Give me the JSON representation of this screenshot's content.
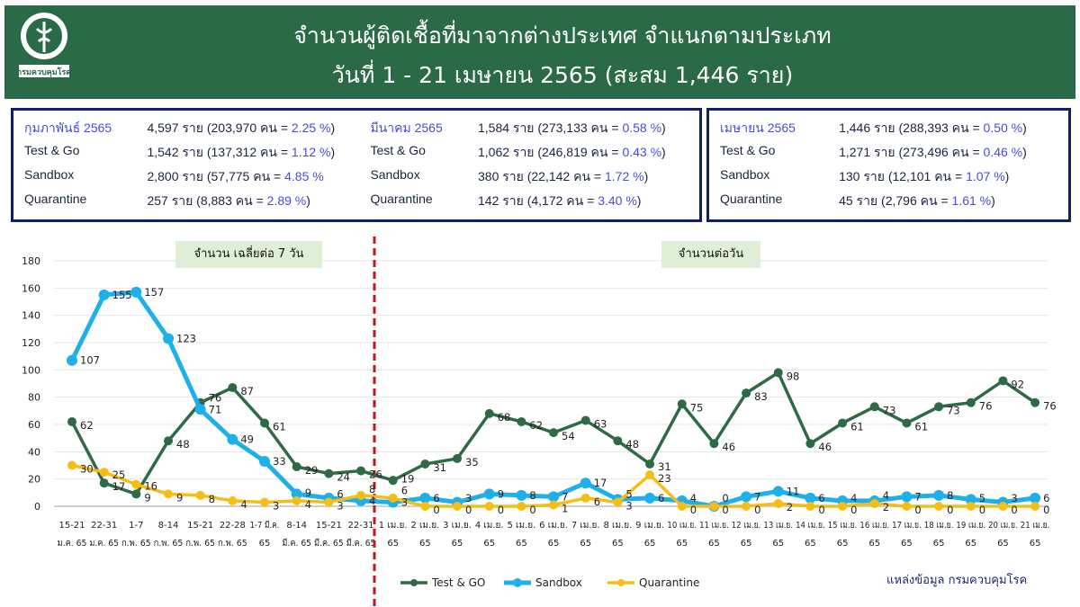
{
  "header": {
    "title": "จำนวนผู้ติดเชื้อที่มาจากต่างประเทศ จำแนกตามประเภท",
    "subtitle": "วันที่  1 - 21 เมษายน  2565 (สะสม 1,446 ราย)",
    "logo_text": "กรมควบคุมโรค"
  },
  "boxes": [
    {
      "rows": [
        {
          "label": "กุมภาพันธ์ 2565",
          "text": "4,597 ราย (203,970 คน = ",
          "pct": "2.25 %",
          "tail": ")"
        },
        {
          "label": "Test & Go",
          "text": "1,542 ราย (137,312 คน  = ",
          "pct": "1.12 %",
          "tail": ")"
        },
        {
          "label": "Sandbox",
          "text": "2,800 ราย (57,775 คน  = ",
          "pct": "4.85 %",
          "tail": ""
        },
        {
          "label": "Quarantine",
          "text": "257 ราย (8,883 คน    = ",
          "pct": "2.89 %",
          "tail": ")"
        }
      ]
    },
    {
      "rows": [
        {
          "label": "มีนาคม 2565",
          "text": "1,584 ราย (273,133 คน = ",
          "pct": "0.58 %",
          "tail": ")"
        },
        {
          "label": "Test & Go",
          "text": "1,062 ราย (246,819 คน = ",
          "pct": "0.43 %",
          "tail": ")"
        },
        {
          "label": "Sandbox",
          "text": "380 ราย (22,142 คน = ",
          "pct": "1.72 %",
          "tail": ")"
        },
        {
          "label": "Quarantine",
          "text": "142 ราย (4,172 คน  = ",
          "pct": "3.40 %",
          "tail": ")"
        }
      ]
    },
    {
      "rows": [
        {
          "label": "เมษายน 2565",
          "text": "1,446 ราย (288,393 คน  = ",
          "pct": "0.50 %",
          "tail": ")"
        },
        {
          "label": "Test & Go",
          "text": "1,271 ราย (273,496 คน = ",
          "pct": "0.46 %",
          "tail": ")"
        },
        {
          "label": "Sandbox",
          "text": "130 ราย (12,101 คน  = ",
          "pct": "1.07 %",
          "tail": ")"
        },
        {
          "label": "Quarantine",
          "text": "45 ราย (2,796 คน  = ",
          "pct": "1.61 %",
          "tail": ")"
        }
      ]
    }
  ],
  "chart_data": {
    "type": "line",
    "ylim": [
      0,
      180
    ],
    "yticks": [
      0,
      20,
      40,
      60,
      80,
      100,
      120,
      140,
      160,
      180
    ],
    "grid": true,
    "legend_placement": "bottom",
    "annotations": {
      "weekly": "จำนวน เฉลี่ยต่อ 7 วัน",
      "daily": "จำนวนต่อวัน"
    },
    "categories": [
      [
        "15-21",
        "ม.ค. 65"
      ],
      [
        "22-31",
        "ม.ค. 65"
      ],
      [
        "1-7",
        "ก.พ. 65"
      ],
      [
        "8-14",
        "ก.พ. 65"
      ],
      [
        "15-21",
        "ก.พ. 65"
      ],
      [
        "22-28",
        "ก.พ. 65"
      ],
      [
        "1-7 มี.ค.",
        "65"
      ],
      [
        "8-14",
        "มี.ค. 65"
      ],
      [
        "15-21",
        "มี.ค. 65"
      ],
      [
        "22-31",
        "มี.ค. 65"
      ],
      [
        "1 เม.ย.",
        "65"
      ],
      [
        "2 เม.ย.",
        "65"
      ],
      [
        "3 เม.ย.",
        "65"
      ],
      [
        "4 เม.ย.",
        "65"
      ],
      [
        "5 เม.ย.",
        "65"
      ],
      [
        "6 เม.ย.",
        "65"
      ],
      [
        "7 เม.ย.",
        "65"
      ],
      [
        "8 เม.ย.",
        "65"
      ],
      [
        "9 เม.ย.",
        "65"
      ],
      [
        "10 เม.ย.",
        "65"
      ],
      [
        "11 เม.ย.",
        "65"
      ],
      [
        "12 เม.ย.",
        "65"
      ],
      [
        "13 เม.ย.",
        "65"
      ],
      [
        "14 เม.ย.",
        "65"
      ],
      [
        "15 เม.ย.",
        "65"
      ],
      [
        "16 เม.ย.",
        "65"
      ],
      [
        "17 เม.ย.",
        "65"
      ],
      [
        "18 เม.ย.",
        "65"
      ],
      [
        "19 เม.ย.",
        "65"
      ],
      [
        "20 เม.ย.",
        "65"
      ],
      [
        "21 เม.ย.",
        "65"
      ]
    ],
    "series": [
      {
        "name": "Test & GO",
        "color": "#2d6a45",
        "values": [
          62,
          17,
          9,
          48,
          76,
          87,
          61,
          29,
          24,
          26,
          19,
          31,
          35,
          68,
          62,
          54,
          63,
          48,
          31,
          75,
          46,
          83,
          98,
          46,
          61,
          73,
          61,
          73,
          76,
          92,
          76
        ]
      },
      {
        "name": "Sandbox",
        "color": "#1eb0ea",
        "values": [
          107,
          155,
          157,
          123,
          71,
          49,
          33,
          9,
          6,
          4,
          3,
          6,
          3,
          9,
          8,
          7,
          17,
          5,
          6,
          4,
          0,
          7,
          11,
          6,
          4,
          4,
          7,
          8,
          5,
          3,
          6
        ]
      },
      {
        "name": "Quarantine",
        "color": "#f7bd17",
        "values": [
          30,
          25,
          16,
          9,
          8,
          4,
          3,
          4,
          3,
          8,
          6,
          0,
          0,
          0,
          0,
          1,
          6,
          3,
          23,
          0,
          0,
          0,
          2,
          0,
          0,
          2,
          0,
          0,
          0,
          0,
          0
        ]
      }
    ],
    "divider_color": "#c8141c"
  },
  "source": "แหล่งข้อมูล กรมควบคุมโรค"
}
